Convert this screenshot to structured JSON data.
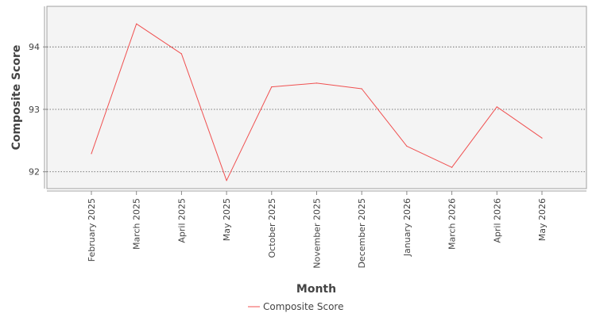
{
  "chart_data": {
    "type": "line",
    "title": "",
    "xlabel": "Month",
    "ylabel": "Composite Score",
    "categories": [
      "February 2025",
      "March 2025",
      "April 2025",
      "May 2025",
      "October 2025",
      "November 2025",
      "December 2025",
      "January 2026",
      "March 2026",
      "April 2026",
      "May 2026"
    ],
    "series": [
      {
        "name": "Composite Score",
        "color": "#f05050",
        "values": [
          92.29,
          94.37,
          93.89,
          91.86,
          93.36,
          93.42,
          93.33,
          92.41,
          92.07,
          93.04,
          92.54
        ]
      }
    ],
    "y_ticks": [
      92,
      93,
      94
    ],
    "ylim": [
      91.73,
      94.65
    ],
    "grid": "horizontal dotted",
    "legend_position": "bottom",
    "plot_background": "#f4f4f4"
  }
}
